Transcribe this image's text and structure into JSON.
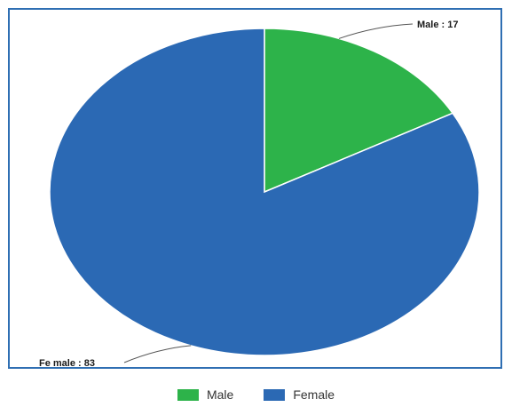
{
  "chart_data": {
    "type": "pie",
    "categories": [
      "Male",
      "Female"
    ],
    "values": [
      17,
      83
    ],
    "colors": {
      "Male": "#2db34a",
      "Female": "#2b69b4"
    },
    "slice_labels": [
      "Male : 17",
      "Fe male : 83"
    ],
    "legend": {
      "placement": "bottom",
      "entries": [
        "Male",
        "Female"
      ]
    }
  }
}
